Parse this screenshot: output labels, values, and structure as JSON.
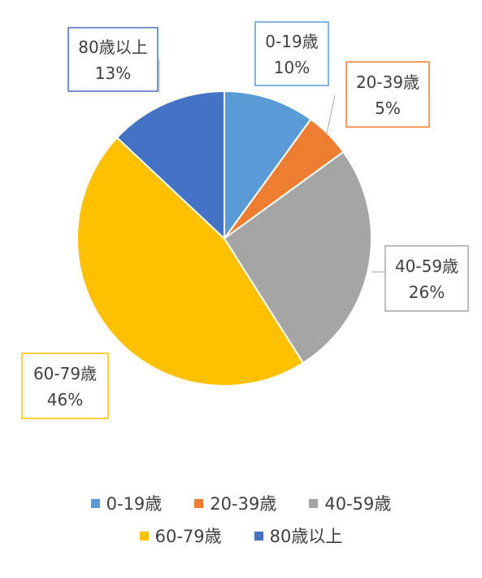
{
  "chart_data": {
    "type": "pie",
    "categories": [
      "0-19歳",
      "20-39歳",
      "40-59歳",
      "60-79歳",
      "80歳以上"
    ],
    "values": [
      10,
      5,
      26,
      46,
      13
    ],
    "data_labels": [
      "10%",
      "5%",
      "26%",
      "46%",
      "13%"
    ],
    "colors": [
      "#5B9BD5",
      "#ED7D31",
      "#A5A5A5",
      "#FFC000",
      "#4472C4"
    ],
    "legend_position": "bottom"
  }
}
